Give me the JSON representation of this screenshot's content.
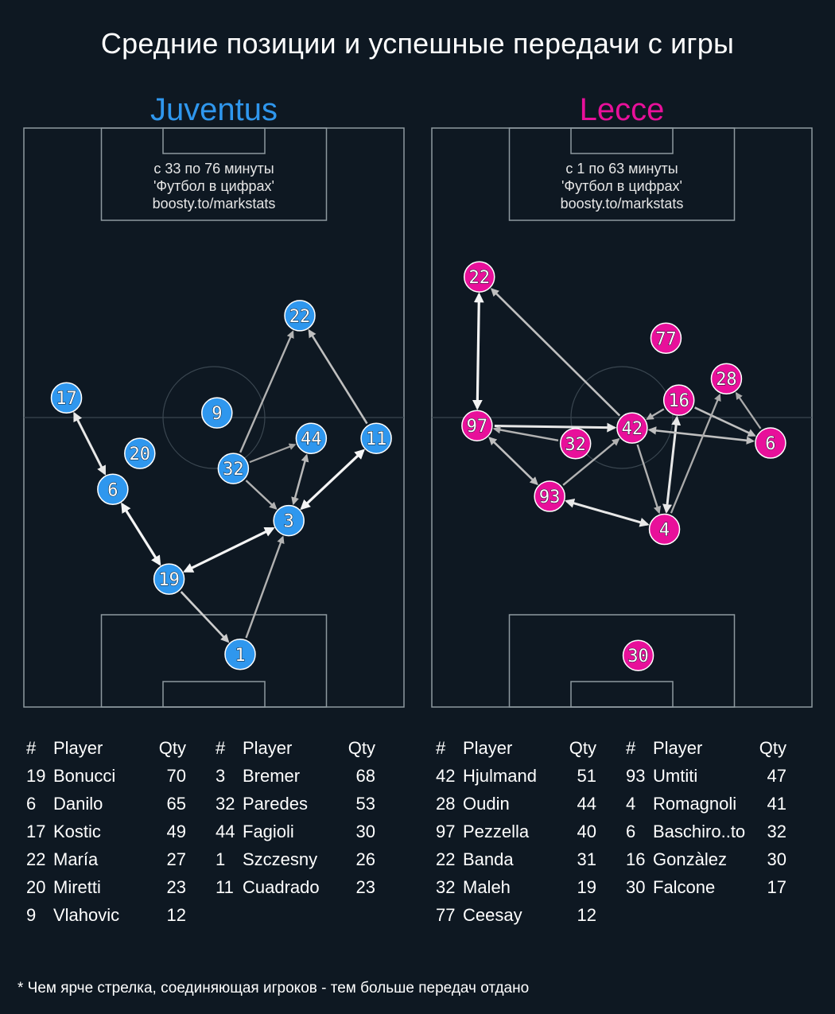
{
  "title": "Средние позиции и успешные передачи с игры",
  "footnote": "* Чем ярче стрелка, соединяющая игроков - тем больше передач отдано",
  "colors": {
    "background": "#0e1822",
    "pitch_lines": "#8d999f",
    "juventus": "#2f97ee",
    "lecce": "#e8109a"
  },
  "chart_data": [
    {
      "type": "pass-network",
      "team": "Juventus",
      "credit": [
        "с 33 по 76 минуты",
        "'Футбол в цифрах'",
        "boosty.to/markstats"
      ],
      "table_headers": {
        "num": "#",
        "player": "Player",
        "qty": "Qty"
      },
      "players": [
        {
          "num": "19",
          "name": "Bonucci",
          "qty": "70",
          "x": 38.2,
          "y": 22.1
        },
        {
          "num": "6",
          "name": "Danilo",
          "qty": "65",
          "x": 23.4,
          "y": 37.6
        },
        {
          "num": "17",
          "name": "Kostic",
          "qty": "49",
          "x": 11.2,
          "y": 53.4
        },
        {
          "num": "22",
          "name": "María",
          "qty": "27",
          "x": 72.6,
          "y": 67.6
        },
        {
          "num": "20",
          "name": "Miretti",
          "qty": "23",
          "x": 30.5,
          "y": 43.8
        },
        {
          "num": "9",
          "name": "Vlahovic",
          "qty": "12",
          "x": 50.8,
          "y": 50.8
        },
        {
          "num": "3",
          "name": "Bremer",
          "qty": "68",
          "x": 69.7,
          "y": 32.2
        },
        {
          "num": "32",
          "name": "Paredes",
          "qty": "53",
          "x": 55.1,
          "y": 41.2
        },
        {
          "num": "44",
          "name": "Fagioli",
          "qty": "30",
          "x": 75.6,
          "y": 46.4
        },
        {
          "num": "1",
          "name": "Szczesny",
          "qty": "26",
          "x": 56.9,
          "y": 9.1
        },
        {
          "num": "11",
          "name": "Cuadrado",
          "qty": "23",
          "x": 92.7,
          "y": 46.4
        }
      ],
      "passes": [
        {
          "from": "19",
          "to": "3",
          "both": true,
          "strength": 1.0
        },
        {
          "from": "19",
          "to": "6",
          "both": true,
          "strength": 1.0
        },
        {
          "from": "3",
          "to": "11",
          "both": true,
          "strength": 1.0
        },
        {
          "from": "6",
          "to": "17",
          "both": true,
          "strength": 0.9
        },
        {
          "from": "19",
          "to": "1",
          "both": false,
          "strength": 0.7
        },
        {
          "from": "1",
          "to": "3",
          "both": false,
          "strength": 0.5
        },
        {
          "from": "32",
          "to": "3",
          "both": false,
          "strength": 0.5
        },
        {
          "from": "3",
          "to": "44",
          "both": true,
          "strength": 0.55
        },
        {
          "from": "32",
          "to": "44",
          "both": false,
          "strength": 0.4
        },
        {
          "from": "32",
          "to": "22",
          "both": false,
          "strength": 0.5
        },
        {
          "from": "11",
          "to": "22",
          "both": false,
          "strength": 0.6
        }
      ]
    },
    {
      "type": "pass-network",
      "team": "Lecce",
      "credit": [
        "с 1 по 63 минуты",
        "'Футбол в цифрах'",
        "boosty.to/markstats"
      ],
      "table_headers": {
        "num": "#",
        "player": "Player",
        "qty": "Qty"
      },
      "players": [
        {
          "num": "42",
          "name": "Hjulmand",
          "qty": "51",
          "x": 52.7,
          "y": 48.2
        },
        {
          "num": "28",
          "name": "Oudin",
          "qty": "44",
          "x": 77.5,
          "y": 56.7
        },
        {
          "num": "97",
          "name": "Pezzella",
          "qty": "40",
          "x": 11.9,
          "y": 48.6
        },
        {
          "num": "22",
          "name": "Banda",
          "qty": "31",
          "x": 12.5,
          "y": 74.3
        },
        {
          "num": "32",
          "name": "Maleh",
          "qty": "19",
          "x": 37.8,
          "y": 45.5
        },
        {
          "num": "77",
          "name": "Ceesay",
          "qty": "12",
          "x": 61.6,
          "y": 63.7
        },
        {
          "num": "93",
          "name": "Umtiti",
          "qty": "47",
          "x": 31.0,
          "y": 36.4
        },
        {
          "num": "4",
          "name": "Romagnoli",
          "qty": "41",
          "x": 61.2,
          "y": 30.7
        },
        {
          "num": "6",
          "name": "Baschiro..to",
          "qty": "32",
          "x": 89.1,
          "y": 45.6
        },
        {
          "num": "16",
          "name": "Gonzàlez",
          "qty": "30",
          "x": 65.0,
          "y": 53.0
        },
        {
          "num": "30",
          "name": "Falcone",
          "qty": "17",
          "x": 54.3,
          "y": 8.9
        }
      ],
      "passes": [
        {
          "from": "97",
          "to": "22",
          "both": true,
          "strength": 1.0
        },
        {
          "from": "42",
          "to": "22",
          "both": false,
          "strength": 0.6
        },
        {
          "from": "97",
          "to": "42",
          "both": false,
          "strength": 0.9
        },
        {
          "from": "32",
          "to": "97",
          "both": false,
          "strength": 0.5
        },
        {
          "from": "97",
          "to": "93",
          "both": true,
          "strength": 0.6
        },
        {
          "from": "93",
          "to": "42",
          "both": false,
          "strength": 0.5
        },
        {
          "from": "93",
          "to": "4",
          "both": true,
          "strength": 0.9
        },
        {
          "from": "4",
          "to": "16",
          "both": true,
          "strength": 0.9
        },
        {
          "from": "42",
          "to": "4",
          "both": false,
          "strength": 0.5
        },
        {
          "from": "42",
          "to": "6",
          "both": true,
          "strength": 0.6
        },
        {
          "from": "16",
          "to": "6",
          "both": false,
          "strength": 0.6
        },
        {
          "from": "6",
          "to": "28",
          "both": false,
          "strength": 0.45
        },
        {
          "from": "4",
          "to": "28",
          "both": false,
          "strength": 0.45
        },
        {
          "from": "16",
          "to": "42",
          "both": false,
          "strength": 0.5
        }
      ]
    }
  ]
}
